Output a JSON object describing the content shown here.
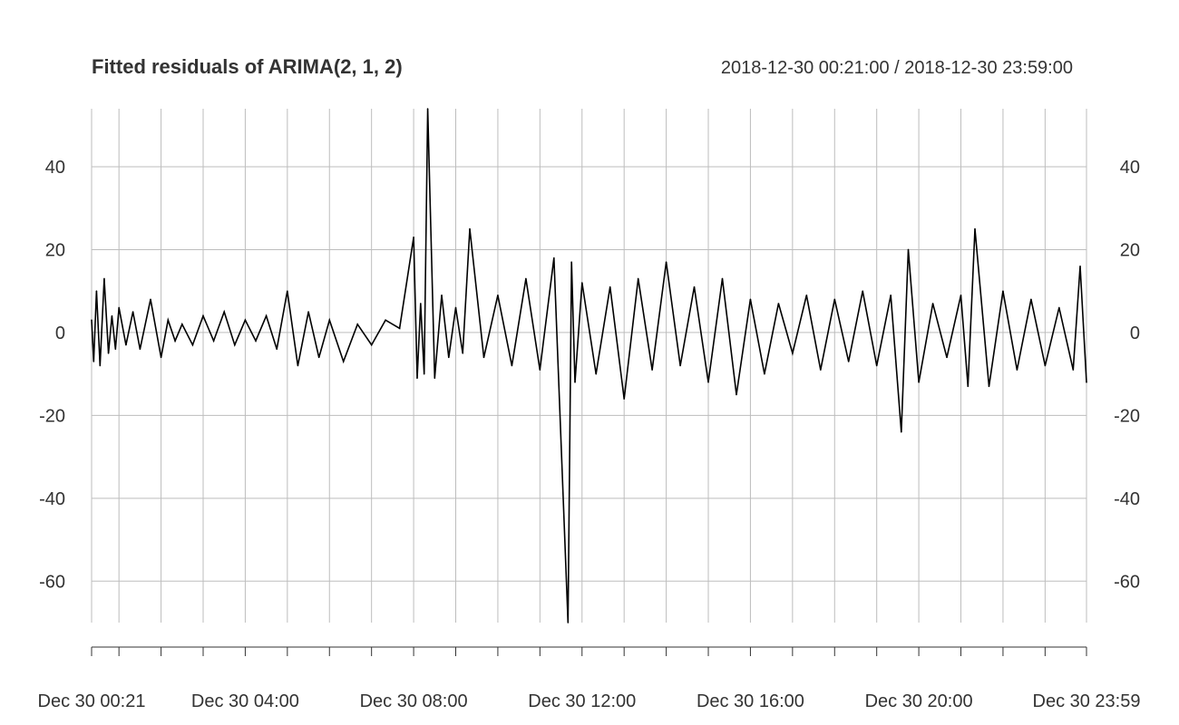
{
  "chart_data": {
    "type": "line",
    "title": "Fitted residuals of ARIMA(2, 1, 2)",
    "date_range": "2018-12-30 00:21:00 / 2018-12-30 23:59:00",
    "xlabel": "",
    "ylabel": "",
    "ylim": [
      -70,
      54
    ],
    "xlim": [
      "2018-12-30 00:21",
      "2018-12-30 23:59"
    ],
    "y_ticks": [
      "40",
      "20",
      "0",
      "-20",
      "-40",
      "-60"
    ],
    "x_tick_labels": [
      "Dec 30 00:21",
      "Dec 30 04:00",
      "Dec 30 08:00",
      "Dec 30 12:00",
      "Dec 30 16:00",
      "Dec 30 20:00",
      "Dec 30 23:59"
    ],
    "grid": true,
    "colors": {
      "series": "#000000",
      "grid": "#bdbdbd",
      "text": "#333333"
    },
    "series": [
      {
        "values_note": "",
        "x": [
          "2018-12-30 00:21",
          "2018-12-30 00:24",
          "2018-12-30 00:28",
          "2018-12-30 00:33",
          "2018-12-30 00:39",
          "2018-12-30 00:45",
          "2018-12-30 00:50",
          "2018-12-30 00:55",
          "2018-12-30 01:00",
          "2018-12-30 01:10",
          "2018-12-30 01:20",
          "2018-12-30 01:30",
          "2018-12-30 01:45",
          "2018-12-30 02:00",
          "2018-12-30 02:10",
          "2018-12-30 02:20",
          "2018-12-30 02:30",
          "2018-12-30 02:45",
          "2018-12-30 03:00",
          "2018-12-30 03:15",
          "2018-12-30 03:30",
          "2018-12-30 03:45",
          "2018-12-30 04:00",
          "2018-12-30 04:15",
          "2018-12-30 04:30",
          "2018-12-30 04:45",
          "2018-12-30 05:00",
          "2018-12-30 05:15",
          "2018-12-30 05:30",
          "2018-12-30 05:45",
          "2018-12-30 06:00",
          "2018-12-30 06:20",
          "2018-12-30 06:40",
          "2018-12-30 07:00",
          "2018-12-30 07:20",
          "2018-12-30 07:40",
          "2018-12-30 08:00",
          "2018-12-30 08:05",
          "2018-12-30 08:10",
          "2018-12-30 08:15",
          "2018-12-30 08:20",
          "2018-12-30 08:30",
          "2018-12-30 08:40",
          "2018-12-30 08:50",
          "2018-12-30 09:00",
          "2018-12-30 09:10",
          "2018-12-30 09:20",
          "2018-12-30 09:40",
          "2018-12-30 10:00",
          "2018-12-30 10:20",
          "2018-12-30 10:40",
          "2018-12-30 11:00",
          "2018-12-30 11:20",
          "2018-12-30 11:40",
          "2018-12-30 11:45",
          "2018-12-30 11:50",
          "2018-12-30 12:00",
          "2018-12-30 12:20",
          "2018-12-30 12:40",
          "2018-12-30 13:00",
          "2018-12-30 13:20",
          "2018-12-30 13:40",
          "2018-12-30 14:00",
          "2018-12-30 14:20",
          "2018-12-30 14:40",
          "2018-12-30 15:00",
          "2018-12-30 15:20",
          "2018-12-30 15:40",
          "2018-12-30 16:00",
          "2018-12-30 16:20",
          "2018-12-30 16:40",
          "2018-12-30 17:00",
          "2018-12-30 17:20",
          "2018-12-30 17:40",
          "2018-12-30 18:00",
          "2018-12-30 18:20",
          "2018-12-30 18:40",
          "2018-12-30 19:00",
          "2018-12-30 19:20",
          "2018-12-30 19:35",
          "2018-12-30 19:45",
          "2018-12-30 20:00",
          "2018-12-30 20:20",
          "2018-12-30 20:40",
          "2018-12-30 21:00",
          "2018-12-30 21:10",
          "2018-12-30 21:20",
          "2018-12-30 21:40",
          "2018-12-30 22:00",
          "2018-12-30 22:20",
          "2018-12-30 22:40",
          "2018-12-30 23:00",
          "2018-12-30 23:20",
          "2018-12-30 23:40",
          "2018-12-30 23:50",
          "2018-12-30 23:59"
        ],
        "values": [
          3,
          -7,
          10,
          -8,
          13,
          -5,
          4,
          -4,
          6,
          -3,
          5,
          -4,
          8,
          -6,
          3,
          -2,
          2,
          -3,
          4,
          -2,
          5,
          -3,
          3,
          -2,
          4,
          -4,
          10,
          -8,
          5,
          -6,
          3,
          -7,
          2,
          -3,
          3,
          1,
          23,
          -11,
          7,
          -10,
          54,
          -11,
          9,
          -6,
          6,
          -5,
          25,
          -6,
          9,
          -8,
          13,
          -9,
          18,
          -70,
          17,
          -12,
          12,
          -10,
          11,
          -16,
          13,
          -9,
          17,
          -8,
          11,
          -12,
          13,
          -15,
          8,
          -10,
          7,
          -5,
          9,
          -9,
          8,
          -7,
          10,
          -8,
          9,
          -24,
          20,
          -12,
          7,
          -6,
          9,
          -13,
          25,
          -13,
          10,
          -9,
          8,
          -8,
          6,
          -9,
          16,
          -12
        ]
      }
    ]
  }
}
